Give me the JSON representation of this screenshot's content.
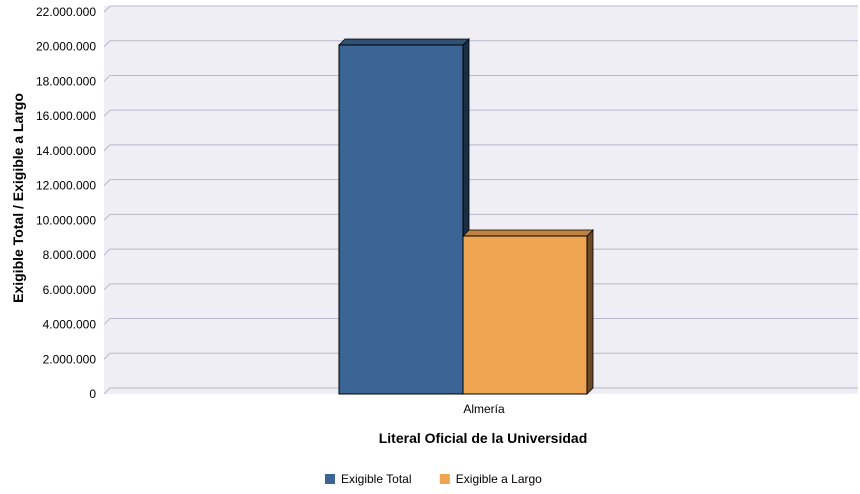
{
  "chart_data": {
    "type": "bar",
    "bar_style": "3d",
    "title": "",
    "xlabel": "Literal Oficial de la Universidad",
    "ylabel": "Exigible Total / Exigible a Largo",
    "categories": [
      "Almería"
    ],
    "series": [
      {
        "name": "Exigible Total",
        "values": [
          20100000
        ],
        "color": "#3A6595"
      },
      {
        "name": "Exigible a Largo",
        "values": [
          9100000
        ],
        "color": "#EFA451"
      }
    ],
    "ylim": [
      0,
      22000000
    ],
    "yticks": [
      "0",
      "2.000.000",
      "4.000.000",
      "6.000.000",
      "8.000.000",
      "10.000.000",
      "12.000.000",
      "14.000.000",
      "16.000.000",
      "18.000.000",
      "20.000.000",
      "22.000.000"
    ],
    "grid": true,
    "legend_position": "bottom-center",
    "plot_background": "#EEEEF4",
    "grid_color": "#B8B8CC"
  }
}
